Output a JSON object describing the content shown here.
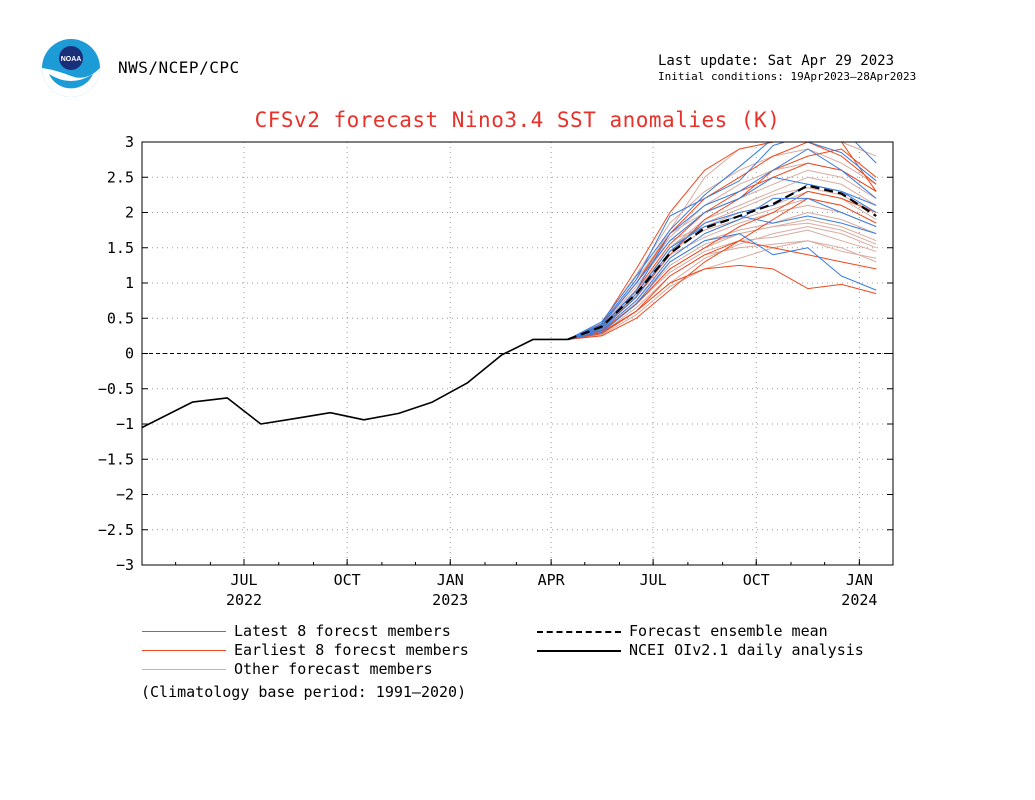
{
  "header": {
    "agency": "NWS/NCEP/CPC",
    "last_update": "Last update: Sat Apr 29 2023",
    "initial_conditions": "Initial conditions: 19Apr2023–28Apr2023",
    "logo_text": "NOAA"
  },
  "colors": {
    "title": "#e8312a",
    "latest_members": "#3a7de0",
    "earliest_members": "#ee4a1f",
    "other_members": "#d9aca0",
    "mean": "#000000",
    "observed": "#000000"
  },
  "legend": {
    "latest": "Latest 8 forecst members",
    "earliest": "Earliest 8 forecst members",
    "other": "Other forecast members",
    "mean": "Forecast ensemble mean",
    "observed": "NCEI OIv2.1 daily analysis"
  },
  "note": "(Climatology base period: 1991–2020)",
  "chart_data": {
    "type": "line",
    "title": "CFSv2 forecast Nino3.4 SST anomalies (K)",
    "xlabel": "",
    "ylabel": "",
    "x_range": [
      "2022-04-01",
      "2024-01-31"
    ],
    "ylim": [
      -3,
      3
    ],
    "yticks": [
      "3",
      "2.5",
      "2",
      "1.5",
      "1",
      "0.5",
      "0",
      "−0.5",
      "−1",
      "−1.5",
      "−2",
      "−2.5",
      "−3"
    ],
    "ytick_values": [
      3,
      2.5,
      2,
      1.5,
      1,
      0.5,
      0,
      -0.5,
      -1,
      -1.5,
      -2,
      -2.5,
      -3
    ],
    "xticks": [
      {
        "month": "JUL",
        "year": "2022",
        "date": "2022-07-01"
      },
      {
        "month": "OCT",
        "year": "",
        "date": "2022-10-01"
      },
      {
        "month": "JAN",
        "year": "2023",
        "date": "2023-01-01"
      },
      {
        "month": "APR",
        "year": "",
        "date": "2023-04-01"
      },
      {
        "month": "JUL",
        "year": "",
        "date": "2023-07-01"
      },
      {
        "month": "OCT",
        "year": "",
        "date": "2023-10-01"
      },
      {
        "month": "JAN",
        "year": "2024",
        "date": "2024-01-01"
      }
    ],
    "grid": true,
    "zero_line": true,
    "observed": {
      "name": "NCEI OIv2.1 daily analysis",
      "x": [
        "2022-04-01",
        "2022-05-16",
        "2022-06-16",
        "2022-07-16",
        "2022-08-16",
        "2022-09-16",
        "2022-10-16",
        "2022-11-16",
        "2022-12-16",
        "2023-01-16",
        "2023-02-16",
        "2023-03-16",
        "2023-04-16"
      ],
      "y": [
        -1.05,
        -0.69,
        -0.63,
        -1.0,
        -0.92,
        -0.84,
        -0.94,
        -0.85,
        -0.69,
        -0.42,
        -0.02,
        0.2,
        0.2
      ]
    },
    "forecast_x": [
      "2023-04-16",
      "2023-05-16",
      "2023-06-16",
      "2023-07-16",
      "2023-08-16",
      "2023-09-16",
      "2023-10-16",
      "2023-11-16",
      "2023-12-16",
      "2024-01-16"
    ],
    "ensemble_mean": {
      "name": "Forecast ensemble mean",
      "y": [
        0.2,
        0.38,
        0.85,
        1.42,
        1.78,
        1.95,
        2.12,
        2.38,
        2.27,
        1.95
      ]
    },
    "latest_members": [
      [
        0.2,
        0.42,
        1.05,
        1.95,
        2.2,
        2.45,
        2.95,
        3.1,
        3.2,
        2.7
      ],
      [
        0.2,
        0.38,
        0.9,
        1.7,
        2.1,
        2.3,
        2.6,
        2.9,
        2.6,
        2.2
      ],
      [
        0.2,
        0.35,
        0.8,
        1.45,
        1.85,
        2.0,
        2.1,
        2.4,
        2.3,
        2.0
      ],
      [
        0.2,
        0.3,
        0.7,
        1.3,
        1.6,
        1.7,
        1.4,
        1.5,
        1.1,
        0.9
      ],
      [
        0.2,
        0.45,
        1.1,
        1.75,
        2.25,
        2.65,
        3.05,
        3.0,
        2.85,
        2.45
      ],
      [
        0.2,
        0.33,
        0.75,
        1.35,
        1.7,
        1.9,
        2.2,
        2.2,
        2.0,
        1.8
      ],
      [
        0.2,
        0.4,
        1.0,
        1.6,
        2.0,
        2.2,
        2.5,
        2.4,
        2.3,
        2.1
      ],
      [
        0.2,
        0.36,
        0.85,
        1.5,
        1.8,
        1.95,
        1.85,
        1.95,
        1.85,
        1.7
      ]
    ],
    "earliest_members": [
      [
        0.2,
        0.42,
        1.2,
        2.0,
        2.6,
        2.9,
        3.0,
        3.1,
        3.0,
        2.3
      ],
      [
        0.2,
        0.3,
        0.6,
        1.0,
        1.2,
        1.25,
        1.2,
        0.92,
        0.98,
        0.85
      ],
      [
        0.2,
        0.35,
        0.8,
        1.4,
        1.9,
        2.2,
        2.6,
        2.8,
        2.9,
        2.5
      ],
      [
        0.2,
        0.25,
        0.5,
        0.9,
        1.3,
        1.6,
        1.9,
        2.2,
        2.1,
        1.85
      ],
      [
        0.2,
        0.4,
        1.0,
        1.7,
        2.2,
        2.5,
        2.8,
        3.0,
        2.8,
        2.4
      ],
      [
        0.2,
        0.32,
        0.7,
        1.2,
        1.5,
        1.8,
        2.0,
        2.3,
        2.2,
        2.0
      ],
      [
        0.2,
        0.38,
        0.9,
        1.55,
        2.0,
        2.3,
        2.5,
        2.7,
        2.6,
        2.3
      ],
      [
        0.2,
        0.28,
        0.6,
        1.1,
        1.4,
        1.6,
        1.5,
        1.4,
        1.3,
        1.2
      ]
    ],
    "other_members": [
      [
        0.2,
        0.4,
        1.0,
        1.75,
        2.5,
        2.9,
        3.0,
        3.1,
        3.0,
        2.8
      ],
      [
        0.2,
        0.3,
        0.7,
        1.2,
        1.5,
        1.7,
        1.8,
        1.9,
        1.8,
        1.6
      ],
      [
        0.2,
        0.35,
        0.85,
        1.5,
        1.9,
        2.1,
        2.3,
        2.5,
        2.4,
        2.1
      ],
      [
        0.2,
        0.28,
        0.6,
        1.0,
        1.35,
        1.55,
        1.7,
        1.8,
        1.7,
        1.5
      ],
      [
        0.2,
        0.42,
        1.05,
        1.7,
        2.0,
        2.2,
        2.4,
        2.6,
        2.5,
        2.2
      ],
      [
        0.2,
        0.33,
        0.75,
        1.3,
        1.6,
        1.75,
        1.85,
        2.0,
        1.9,
        1.7
      ],
      [
        0.2,
        0.38,
        0.95,
        1.6,
        1.8,
        2.0,
        2.1,
        2.3,
        2.2,
        1.9
      ],
      [
        0.2,
        0.26,
        0.55,
        0.95,
        1.2,
        1.35,
        1.5,
        1.6,
        1.5,
        1.3
      ],
      [
        0.2,
        0.4,
        1.0,
        1.65,
        2.1,
        2.4,
        2.6,
        2.7,
        2.6,
        2.3
      ],
      [
        0.2,
        0.34,
        0.8,
        1.4,
        1.65,
        1.85,
        2.0,
        2.1,
        2.0,
        1.8
      ],
      [
        0.2,
        0.31,
        0.72,
        1.25,
        1.55,
        1.7,
        1.8,
        1.85,
        1.75,
        1.55
      ],
      [
        0.2,
        0.37,
        0.88,
        1.5,
        1.85,
        2.05,
        2.25,
        2.35,
        2.25,
        2.0
      ],
      [
        0.2,
        0.29,
        0.65,
        1.1,
        1.4,
        1.5,
        1.55,
        1.6,
        1.45,
        1.35
      ],
      [
        0.2,
        0.43,
        1.12,
        1.85,
        2.3,
        2.6,
        2.8,
        2.9,
        2.7,
        2.4
      ],
      [
        0.2,
        0.32,
        0.7,
        1.15,
        1.45,
        1.6,
        1.65,
        1.75,
        1.6,
        1.45
      ],
      [
        0.2,
        0.36,
        0.82,
        1.45,
        1.75,
        1.9,
        2.05,
        2.2,
        2.1,
        1.85
      ]
    ]
  }
}
